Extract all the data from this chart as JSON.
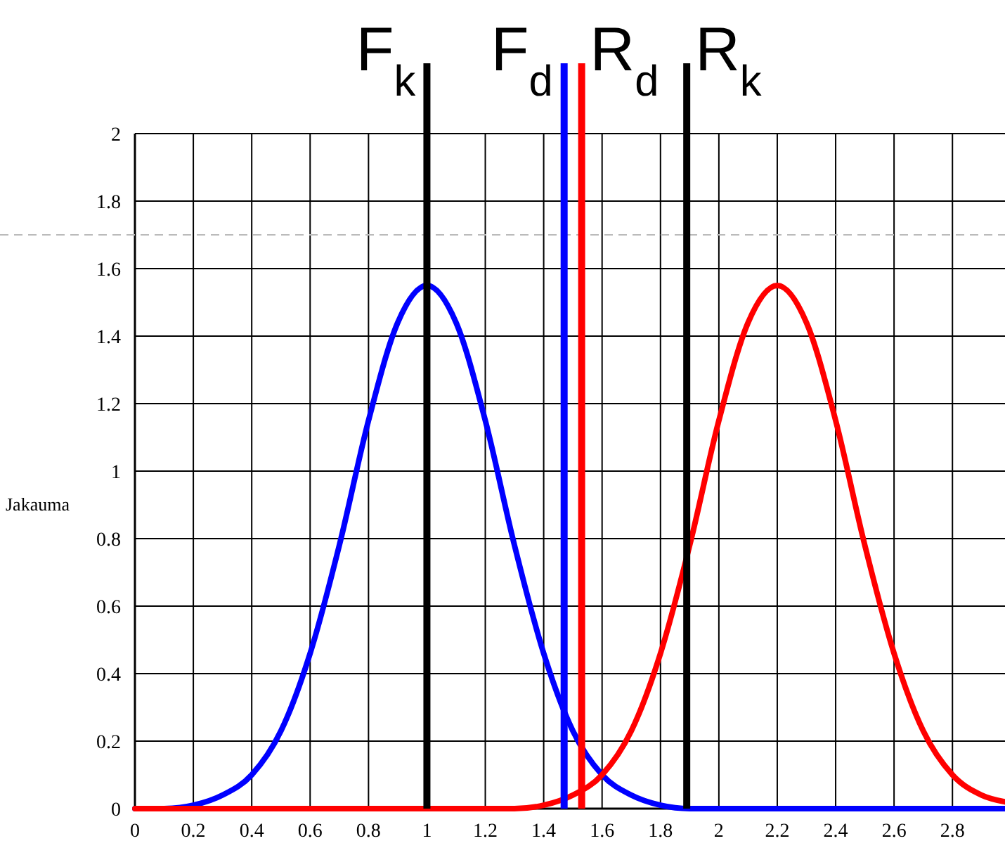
{
  "chart_data": {
    "type": "line",
    "ylabel": "Jakauma",
    "xlim": [
      0,
      2.98
    ],
    "ylim": [
      0,
      2
    ],
    "xticks": [
      0,
      0.2,
      0.4,
      0.6,
      0.8,
      1,
      1.2,
      1.4,
      1.6,
      1.8,
      2,
      2.2,
      2.4,
      2.6,
      2.8
    ],
    "yticks": [
      0,
      0.2,
      0.4,
      0.6,
      0.8,
      1,
      1.2,
      1.4,
      1.6,
      1.8,
      2
    ],
    "grid": true,
    "marker": "none",
    "line_style": "solid",
    "series": [
      {
        "color": "#0000ff",
        "x": [
          0,
          0.1,
          0.2,
          0.3,
          0.4,
          0.5,
          0.6,
          0.7,
          0.8,
          0.9,
          1.0,
          1.1,
          1.2,
          1.3,
          1.4,
          1.5,
          1.6,
          1.7,
          1.8,
          1.9,
          2.98
        ],
        "values": [
          0,
          0,
          0.01,
          0.04,
          0.1,
          0.23,
          0.46,
          0.78,
          1.15,
          1.44,
          1.55,
          1.44,
          1.15,
          0.78,
          0.46,
          0.23,
          0.1,
          0.04,
          0.01,
          0,
          0
        ]
      },
      {
        "color": "#ff0000",
        "x": [
          0,
          1.3,
          1.4,
          1.5,
          1.6,
          1.7,
          1.8,
          1.9,
          2.0,
          2.1,
          2.2,
          2.3,
          2.4,
          2.5,
          2.6,
          2.7,
          2.8,
          2.9,
          2.98
        ],
        "values": [
          0,
          0,
          0.01,
          0.04,
          0.1,
          0.23,
          0.46,
          0.78,
          1.15,
          1.44,
          1.55,
          1.44,
          1.15,
          0.78,
          0.46,
          0.23,
          0.1,
          0.04,
          0.02
        ]
      }
    ],
    "ref_lines": [
      {
        "axis": "x",
        "value": 1.0,
        "label": "F$_{k}$",
        "color": "#000000"
      },
      {
        "axis": "x",
        "value": 1.47,
        "label": "F$_{d}$",
        "color": "#0000ff"
      },
      {
        "axis": "x",
        "value": 1.53,
        "label": "R$_{d}$",
        "color": "#ff0000"
      },
      {
        "axis": "x",
        "value": 1.89,
        "label": "R$_{k}$",
        "color": "#000000"
      },
      {
        "axis": "y",
        "value": 1.7,
        "color": "#bbbbbb",
        "line_style": "dashed"
      }
    ]
  }
}
